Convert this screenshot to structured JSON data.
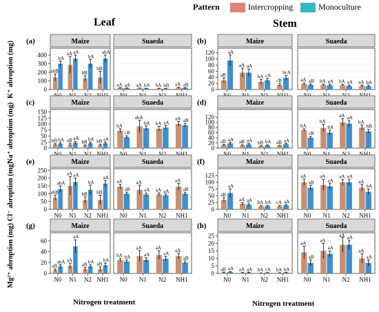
{
  "header": {
    "left": "Leaf",
    "right": "Stem"
  },
  "legend": {
    "title": "Pattern",
    "items": [
      {
        "label": "Intercropping",
        "color": "#e0837a"
      },
      {
        "label": "Monoculture",
        "color": "#36b8c4"
      }
    ]
  },
  "x_title_left": "Nitrogen treatment",
  "x_title_right": "Nitrogen treatment",
  "row_labels": [
    "K⁺ abroption (mg)",
    "Na⁺ abroption (mg)",
    "Cl⁻ abroption (mg)",
    "Mg²⁺ abroption (mg)"
  ],
  "colors": {
    "intercropping": "#c79070",
    "monoculture": "#3e8fd0",
    "strip": "#d9d9d9",
    "error": "#000000"
  },
  "chart_data": [
    {
      "id": "a",
      "tag": "(a)",
      "type": "bar",
      "organ": "Leaf",
      "ion": "K⁺",
      "categories": [
        "N0",
        "N1",
        "N2",
        "NH1"
      ],
      "ylim": [
        0,
        480
      ],
      "yticks": [
        0,
        100,
        200,
        300,
        400
      ],
      "panels": [
        {
          "strip": "Maize",
          "series": [
            {
              "name": "Intercropping",
              "values": [
                140,
                285,
                130,
                140
              ],
              "errors": [
                40,
                100,
                30,
                70
              ]
            },
            {
              "name": "Monoculture",
              "values": [
                300,
                360,
                300,
                360
              ],
              "errors": [
                30,
                40,
                50,
                40
              ]
            }
          ],
          "labels": [
            [
              "abB",
              "bA"
            ],
            [
              "aA",
              "aA"
            ],
            [
              "bB",
              "bA"
            ],
            [
              "bB",
              "abA"
            ]
          ]
        },
        {
          "strip": "Suaeda",
          "series": [
            {
              "name": "Intercropping",
              "values": [
                18,
                15,
                12,
                22
              ],
              "errors": [
                4,
                3,
                3,
                5
              ]
            },
            {
              "name": "Monoculture",
              "values": [
                15,
                12,
                10,
                18
              ],
              "errors": [
                3,
                3,
                2,
                4
              ]
            }
          ],
          "labels": [
            [
              "aA",
              "aA"
            ],
            [
              "aA",
              "bA"
            ],
            [
              "bA",
              "bB"
            ],
            [
              "aA",
              "aB"
            ]
          ]
        }
      ]
    },
    {
      "id": "b",
      "tag": "(b)",
      "type": "bar",
      "organ": "Stem",
      "ion": "K⁺",
      "categories": [
        "N0",
        "N1",
        "N2",
        "NH1"
      ],
      "ylim": [
        0,
        135
      ],
      "yticks": [
        0,
        20,
        40,
        60,
        80,
        100,
        120
      ],
      "panels": [
        {
          "strip": "Maize",
          "series": [
            {
              "name": "Intercropping",
              "values": [
                30,
                55,
                25,
                15
              ],
              "errors": [
                8,
                15,
                8,
                5
              ]
            },
            {
              "name": "Monoculture",
              "values": [
                95,
                55,
                30,
                38
              ],
              "errors": [
                18,
                12,
                6,
                8
              ]
            }
          ],
          "labels": [
            [
              "aB",
              "aA"
            ],
            [
              "aA",
              "aA"
            ],
            [
              "bA",
              "cA"
            ],
            [
              "cB",
              "bcA"
            ]
          ]
        },
        {
          "strip": "Suaeda",
          "series": [
            {
              "name": "Intercropping",
              "values": [
                18,
                15,
                14,
                12
              ],
              "errors": [
                4,
                3,
                3,
                3
              ]
            },
            {
              "name": "Monoculture",
              "values": [
                15,
                14,
                12,
                11
              ],
              "errors": [
                3,
                3,
                3,
                3
              ]
            }
          ],
          "labels": [
            [
              "aA",
              "aB"
            ],
            [
              "bA",
              "aA"
            ],
            [
              "bA",
              "aA"
            ],
            [
              "aA",
              "bA"
            ]
          ]
        }
      ]
    },
    {
      "id": "c",
      "tag": "(c)",
      "type": "bar",
      "organ": "Leaf",
      "ion": "Na⁺",
      "categories": [
        "N0",
        "N1",
        "N2",
        "NH1"
      ],
      "ylim": [
        0,
        160
      ],
      "yticks": [
        0,
        25,
        50,
        75,
        100,
        125,
        150
      ],
      "panels": [
        {
          "strip": "Maize",
          "series": [
            {
              "name": "Intercropping",
              "values": [
                15,
                15,
                10,
                12
              ],
              "errors": [
                3,
                5,
                3,
                4
              ]
            },
            {
              "name": "Monoculture",
              "values": [
                18,
                22,
                20,
                20
              ],
              "errors": [
                4,
                6,
                5,
                5
              ]
            }
          ],
          "labels": [
            [
              "bB",
              "bA"
            ],
            [
              "aB",
              "aA"
            ],
            [
              "bB",
              "bA"
            ],
            [
              "bB",
              "aA"
            ]
          ]
        },
        {
          "strip": "Suaeda",
          "series": [
            {
              "name": "Intercropping",
              "values": [
                72,
                90,
                80,
                100
              ],
              "errors": [
                8,
                25,
                10,
                10
              ]
            },
            {
              "name": "Monoculture",
              "values": [
                45,
                82,
                85,
                95
              ],
              "errors": [
                6,
                10,
                8,
                8
              ]
            }
          ],
          "labels": [
            [
              "bA",
              "cB"
            ],
            [
              "abA",
              "bA"
            ],
            [
              "bA",
              "aA"
            ],
            [
              "aA",
              "aB"
            ]
          ]
        }
      ]
    },
    {
      "id": "d",
      "tag": "(d)",
      "type": "bar",
      "organ": "Stem",
      "ion": "Na⁺",
      "categories": [
        "N0",
        "N1",
        "N2",
        "NH1"
      ],
      "ylim": [
        0,
        150
      ],
      "yticks": [
        0,
        20,
        40,
        60,
        80,
        100,
        120
      ],
      "panels": [
        {
          "strip": "Maize",
          "series": [
            {
              "name": "Intercropping",
              "values": [
                12,
                10,
                8,
                9
              ],
              "errors": [
                3,
                3,
                2,
                2
              ]
            },
            {
              "name": "Monoculture",
              "values": [
                18,
                14,
                10,
                15
              ],
              "errors": [
                4,
                3,
                3,
                3
              ]
            }
          ],
          "labels": [
            [
              "aB",
              "aA"
            ],
            [
              "aB",
              "aA"
            ],
            [
              "bB",
              "bA"
            ],
            [
              "aB",
              "aA"
            ]
          ]
        },
        {
          "strip": "Suaeda",
          "series": [
            {
              "name": "Intercropping",
              "values": [
                70,
                78,
                100,
                80
              ],
              "errors": [
                5,
                15,
                15,
                10
              ]
            },
            {
              "name": "Monoculture",
              "values": [
                40,
                60,
                95,
                65
              ],
              "errors": [
                5,
                10,
                12,
                8
              ]
            }
          ],
          "labels": [
            [
              "bA",
              "cB"
            ],
            [
              "bA",
              "bA"
            ],
            [
              "aA",
              "aA"
            ],
            [
              "bA",
              "bB"
            ]
          ]
        }
      ]
    },
    {
      "id": "e",
      "tag": "(e)",
      "type": "bar",
      "organ": "Leaf",
      "ion": "Cl⁻",
      "categories": [
        "N0",
        "N1",
        "N2",
        "NH1"
      ],
      "ylim": [
        0,
        260
      ],
      "yticks": [
        0,
        50,
        100,
        150,
        200,
        250
      ],
      "panels": [
        {
          "strip": "Maize",
          "series": [
            {
              "name": "Intercropping",
              "values": [
                75,
                150,
                60,
                60
              ],
              "errors": [
                15,
                60,
                20,
                30
              ]
            },
            {
              "name": "Monoculture",
              "values": [
                130,
                175,
                125,
                165
              ],
              "errors": [
                20,
                25,
                30,
                20
              ]
            }
          ],
          "labels": [
            [
              "abB",
              "abA"
            ],
            [
              "aA",
              "aA"
            ],
            [
              "bB",
              "bA"
            ],
            [
              "bB",
              "aA"
            ]
          ]
        },
        {
          "strip": "Suaeda",
          "series": [
            {
              "name": "Intercropping",
              "values": [
                145,
                125,
                95,
                145
              ],
              "errors": [
                15,
                30,
                10,
                20
              ]
            },
            {
              "name": "Monoculture",
              "values": [
                100,
                95,
                90,
                100
              ],
              "errors": [
                10,
                10,
                8,
                10
              ]
            }
          ],
          "labels": [
            [
              "aA",
              "aB"
            ],
            [
              "aA",
              "aA"
            ],
            [
              "aA",
              "aA"
            ],
            [
              "aA",
              "aB"
            ]
          ]
        }
      ]
    },
    {
      "id": "f",
      "tag": "(f)",
      "type": "bar",
      "organ": "Stem",
      "ion": "Cl⁻",
      "categories": [
        "N0",
        "N1",
        "N2",
        "NH1"
      ],
      "ylim": [
        0,
        150
      ],
      "yticks": [
        0,
        25,
        50,
        75,
        100,
        125
      ],
      "panels": [
        {
          "strip": "Maize",
          "series": [
            {
              "name": "Intercropping",
              "values": [
                35,
                20,
                12,
                12
              ],
              "errors": [
                8,
                5,
                3,
                3
              ]
            },
            {
              "name": "Monoculture",
              "values": [
                60,
                18,
                12,
                15
              ],
              "errors": [
                15,
                5,
                3,
                3
              ]
            }
          ],
          "labels": [
            [
              "aB",
              "aA"
            ],
            [
              "aA",
              "aA"
            ],
            [
              "bA",
              "bA"
            ],
            [
              "cA",
              "aA"
            ]
          ]
        },
        {
          "strip": "Suaeda",
          "series": [
            {
              "name": "Intercropping",
              "values": [
                100,
                90,
                100,
                80
              ],
              "errors": [
                12,
                20,
                10,
                12
              ]
            },
            {
              "name": "Monoculture",
              "values": [
                80,
                85,
                100,
                65
              ],
              "errors": [
                8,
                10,
                10,
                10
              ]
            }
          ],
          "labels": [
            [
              "aA",
              "aB"
            ],
            [
              "aA",
              "aA"
            ],
            [
              "aA",
              "aA"
            ],
            [
              "aA",
              "bA"
            ]
          ]
        }
      ]
    },
    {
      "id": "g",
      "tag": "(g)",
      "type": "bar",
      "organ": "Leaf",
      "ion": "Mg²⁺",
      "categories": [
        "N0",
        "N1",
        "N2",
        "NH1"
      ],
      "ylim": [
        0,
        75
      ],
      "yticks": [
        0,
        20,
        40,
        60
      ],
      "panels": [
        {
          "strip": "Maize",
          "series": [
            {
              "name": "Intercropping",
              "values": [
                6,
                14,
                8,
                8
              ],
              "errors": [
                2,
                5,
                3,
                4
              ]
            },
            {
              "name": "Monoculture",
              "values": [
                13,
                50,
                13,
                15
              ],
              "errors": [
                3,
                12,
                3,
                4
              ]
            }
          ],
          "labels": [
            [
              "aB",
              "abA"
            ],
            [
              "aA",
              "aA"
            ],
            [
              "aB",
              "bA"
            ],
            [
              "aB",
              "bA"
            ]
          ]
        },
        {
          "strip": "Suaeda",
          "series": [
            {
              "name": "Intercropping",
              "values": [
                25,
                32,
                34,
                32
              ],
              "errors": [
                3,
                10,
                8,
                5
              ]
            },
            {
              "name": "Monoculture",
              "values": [
                22,
                25,
                27,
                20
              ],
              "errors": [
                3,
                4,
                4,
                3
              ]
            }
          ],
          "labels": [
            [
              "bA",
              "bA"
            ],
            [
              "aA",
              "aA"
            ],
            [
              "aA",
              "aA"
            ],
            [
              "aA",
              "aB"
            ]
          ]
        }
      ]
    },
    {
      "id": "h",
      "tag": "(h)",
      "type": "bar",
      "organ": "Stem",
      "ion": "Mg²⁺",
      "categories": [
        "N0",
        "N1",
        "N2",
        "NH1"
      ],
      "ylim": [
        0,
        27
      ],
      "yticks": [
        0,
        5,
        10,
        15,
        20,
        25
      ],
      "panels": [
        {
          "strip": "Maize",
          "series": [
            {
              "name": "Intercropping",
              "values": [
                0.6,
                0.5,
                0.3,
                0.4
              ],
              "errors": [
                0.2,
                0.2,
                0.1,
                0.1
              ]
            },
            {
              "name": "Monoculture",
              "values": [
                1.0,
                0.6,
                0.5,
                0.6
              ],
              "errors": [
                0.3,
                0.2,
                0.1,
                0.2
              ]
            }
          ],
          "labels": [
            [
              "aB",
              "aA"
            ],
            [
              "aA",
              "aA"
            ],
            [
              "bA",
              "cA"
            ],
            [
              "bA",
              "bA"
            ]
          ]
        },
        {
          "strip": "Suaeda",
          "series": [
            {
              "name": "Intercropping",
              "values": [
                14,
                15,
                19,
                10
              ],
              "errors": [
                4,
                5,
                5,
                3
              ]
            },
            {
              "name": "Monoculture",
              "values": [
                7,
                13,
                19,
                7
              ],
              "errors": [
                2,
                2,
                3,
                2
              ]
            }
          ],
          "labels": [
            [
              "aA",
              "aB"
            ],
            [
              "aA",
              "aA"
            ],
            [
              "aA",
              "aA"
            ],
            [
              "aA",
              "aA"
            ]
          ]
        }
      ]
    }
  ]
}
